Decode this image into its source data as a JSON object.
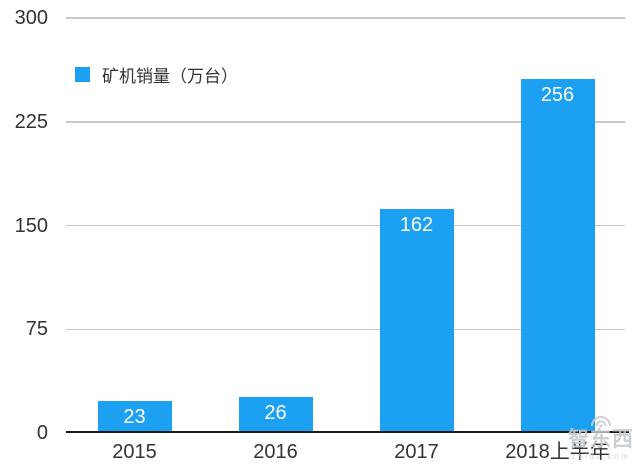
{
  "chart_data": {
    "type": "bar",
    "categories": [
      "2015",
      "2016",
      "2017",
      "2018上半年"
    ],
    "values": [
      23,
      26,
      162,
      256
    ],
    "series_name": "矿机销量（万台）",
    "title": "",
    "xlabel": "",
    "ylabel": "",
    "ylim": [
      0,
      300
    ],
    "y_ticks": [
      0,
      75,
      150,
      225,
      300
    ],
    "grid": true,
    "legend_position": "top-left",
    "bar_color": "#1ca1f2",
    "value_label_style": "inside-top-white"
  },
  "legend": {
    "label": "矿机销量（万台）"
  },
  "watermark": {
    "logo_text": "智东西",
    "url_text": "zhidx.com"
  },
  "colors": {
    "bar": "#1ca1f2",
    "gridline": "#c7c7c7",
    "axis_line": "#1a1a1a",
    "text": "#333333",
    "value_text": "#ffffff",
    "watermark": "#c4c9ce"
  }
}
